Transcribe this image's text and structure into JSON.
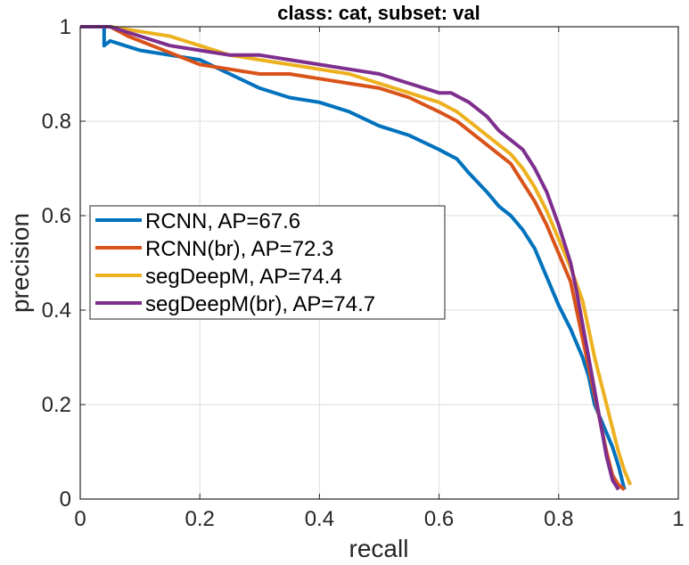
{
  "chart_data": {
    "type": "line",
    "title": "class: cat, subset: val",
    "xlabel": "recall",
    "ylabel": "precision",
    "xlim": [
      0,
      1
    ],
    "ylim": [
      0,
      1
    ],
    "xticks": [
      0,
      0.2,
      0.4,
      0.6,
      0.8,
      1
    ],
    "yticks": [
      0,
      0.2,
      0.4,
      0.6,
      0.8,
      1
    ],
    "xtick_labels": [
      "0",
      "0.2",
      "0.4",
      "0.6",
      "0.8",
      "1"
    ],
    "ytick_labels": [
      "0",
      "0.2",
      "0.4",
      "0.6",
      "0.8",
      "1"
    ],
    "grid": true,
    "legend_position": "center-left",
    "series": [
      {
        "name": "RCNN, AP=67.6",
        "color": "#0072BD",
        "points": [
          [
            0,
            1
          ],
          [
            0.04,
            1
          ],
          [
            0.04,
            0.96
          ],
          [
            0.05,
            0.97
          ],
          [
            0.1,
            0.95
          ],
          [
            0.15,
            0.94
          ],
          [
            0.2,
            0.93
          ],
          [
            0.25,
            0.9
          ],
          [
            0.3,
            0.87
          ],
          [
            0.35,
            0.85
          ],
          [
            0.4,
            0.84
          ],
          [
            0.45,
            0.82
          ],
          [
            0.5,
            0.79
          ],
          [
            0.55,
            0.77
          ],
          [
            0.6,
            0.74
          ],
          [
            0.63,
            0.72
          ],
          [
            0.65,
            0.69
          ],
          [
            0.68,
            0.65
          ],
          [
            0.7,
            0.62
          ],
          [
            0.72,
            0.6
          ],
          [
            0.74,
            0.57
          ],
          [
            0.76,
            0.53
          ],
          [
            0.78,
            0.47
          ],
          [
            0.8,
            0.41
          ],
          [
            0.82,
            0.36
          ],
          [
            0.84,
            0.3
          ],
          [
            0.85,
            0.26
          ],
          [
            0.86,
            0.2
          ],
          [
            0.87,
            0.17
          ],
          [
            0.88,
            0.14
          ],
          [
            0.89,
            0.11
          ],
          [
            0.9,
            0.07
          ],
          [
            0.91,
            0.02
          ]
        ]
      },
      {
        "name": "RCNN(br), AP=72.3",
        "color": "#D95319",
        "points": [
          [
            0,
            1
          ],
          [
            0.05,
            1
          ],
          [
            0.08,
            0.98
          ],
          [
            0.12,
            0.96
          ],
          [
            0.16,
            0.94
          ],
          [
            0.2,
            0.92
          ],
          [
            0.25,
            0.91
          ],
          [
            0.3,
            0.9
          ],
          [
            0.35,
            0.9
          ],
          [
            0.4,
            0.89
          ],
          [
            0.45,
            0.88
          ],
          [
            0.5,
            0.87
          ],
          [
            0.55,
            0.85
          ],
          [
            0.6,
            0.82
          ],
          [
            0.63,
            0.8
          ],
          [
            0.66,
            0.77
          ],
          [
            0.69,
            0.74
          ],
          [
            0.72,
            0.71
          ],
          [
            0.74,
            0.67
          ],
          [
            0.76,
            0.63
          ],
          [
            0.78,
            0.58
          ],
          [
            0.8,
            0.52
          ],
          [
            0.82,
            0.46
          ],
          [
            0.83,
            0.4
          ],
          [
            0.84,
            0.34
          ],
          [
            0.85,
            0.28
          ],
          [
            0.86,
            0.22
          ],
          [
            0.87,
            0.16
          ],
          [
            0.88,
            0.1
          ],
          [
            0.89,
            0.05
          ],
          [
            0.9,
            0.03
          ],
          [
            0.91,
            0.02
          ]
        ]
      },
      {
        "name": "segDeepM, AP=74.4",
        "color": "#EDB120",
        "points": [
          [
            0,
            1
          ],
          [
            0.05,
            1
          ],
          [
            0.1,
            0.99
          ],
          [
            0.15,
            0.98
          ],
          [
            0.2,
            0.96
          ],
          [
            0.25,
            0.94
          ],
          [
            0.3,
            0.93
          ],
          [
            0.35,
            0.92
          ],
          [
            0.4,
            0.91
          ],
          [
            0.45,
            0.9
          ],
          [
            0.5,
            0.88
          ],
          [
            0.55,
            0.86
          ],
          [
            0.6,
            0.84
          ],
          [
            0.63,
            0.82
          ],
          [
            0.66,
            0.79
          ],
          [
            0.69,
            0.76
          ],
          [
            0.72,
            0.73
          ],
          [
            0.74,
            0.7
          ],
          [
            0.76,
            0.66
          ],
          [
            0.78,
            0.61
          ],
          [
            0.8,
            0.55
          ],
          [
            0.82,
            0.49
          ],
          [
            0.84,
            0.42
          ],
          [
            0.85,
            0.36
          ],
          [
            0.86,
            0.3
          ],
          [
            0.87,
            0.25
          ],
          [
            0.88,
            0.2
          ],
          [
            0.89,
            0.15
          ],
          [
            0.9,
            0.1
          ],
          [
            0.91,
            0.06
          ],
          [
            0.92,
            0.03
          ]
        ]
      },
      {
        "name": "segDeepM(br), AP=74.7",
        "color": "#7E2F8E",
        "points": [
          [
            0,
            1
          ],
          [
            0.05,
            1
          ],
          [
            0.1,
            0.98
          ],
          [
            0.15,
            0.96
          ],
          [
            0.2,
            0.95
          ],
          [
            0.25,
            0.94
          ],
          [
            0.3,
            0.94
          ],
          [
            0.35,
            0.93
          ],
          [
            0.4,
            0.92
          ],
          [
            0.45,
            0.91
          ],
          [
            0.5,
            0.9
          ],
          [
            0.55,
            0.88
          ],
          [
            0.6,
            0.86
          ],
          [
            0.62,
            0.86
          ],
          [
            0.65,
            0.84
          ],
          [
            0.68,
            0.81
          ],
          [
            0.7,
            0.78
          ],
          [
            0.72,
            0.76
          ],
          [
            0.74,
            0.74
          ],
          [
            0.76,
            0.7
          ],
          [
            0.78,
            0.65
          ],
          [
            0.8,
            0.58
          ],
          [
            0.82,
            0.5
          ],
          [
            0.83,
            0.44
          ],
          [
            0.84,
            0.37
          ],
          [
            0.85,
            0.3
          ],
          [
            0.86,
            0.23
          ],
          [
            0.87,
            0.16
          ],
          [
            0.88,
            0.09
          ],
          [
            0.89,
            0.04
          ],
          [
            0.9,
            0.02
          ]
        ]
      }
    ]
  }
}
